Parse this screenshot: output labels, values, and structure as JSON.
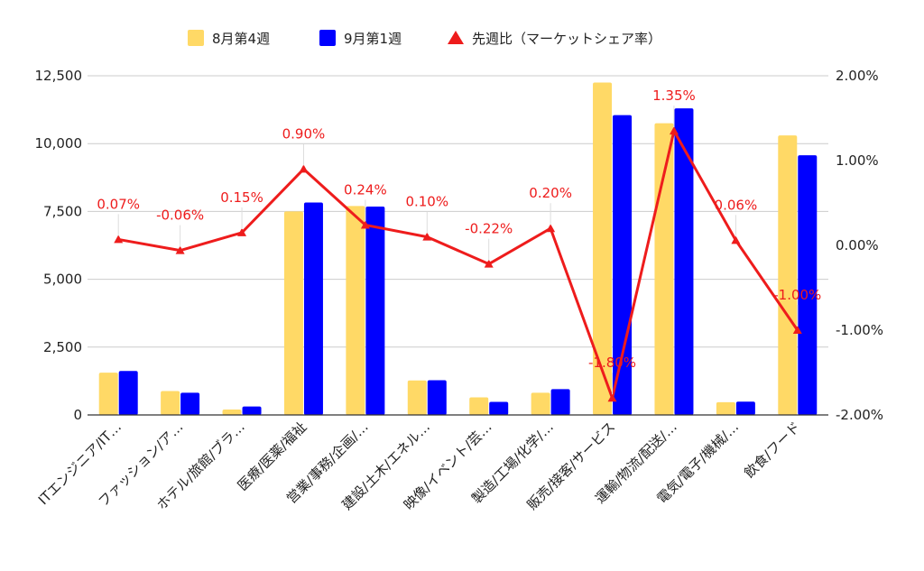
{
  "chart_data": {
    "type": "bar",
    "categories": [
      "ITエンジニア/IT…",
      "ファッション/ア…",
      "ホテル/旅館/ブラ…",
      "医療/医薬/福祉",
      "営業/事務/企画/…",
      "建設/土木/エネル…",
      "映像/イベント/芸…",
      "製造/工場/化学/…",
      "販売/接客/サービス",
      "運輸/物流/配送/…",
      "電気/電子/機械/…",
      "飲食/フード"
    ],
    "series": [
      {
        "name": "8月第4週",
        "axis": "left",
        "color": "#ffd966",
        "values": [
          1560,
          880,
          200,
          7500,
          7700,
          1270,
          650,
          820,
          12250,
          10750,
          470,
          10300
        ]
      },
      {
        "name": "9月第1週",
        "axis": "left",
        "color": "#0000ff",
        "values": [
          1620,
          820,
          310,
          7830,
          7680,
          1280,
          480,
          950,
          11050,
          11300,
          490,
          9570
        ]
      },
      {
        "name": "先週比（マーケットシェア率）",
        "axis": "right",
        "type": "line",
        "color": "#ee1c1c",
        "values": [
          0.07,
          -0.06,
          0.15,
          0.9,
          0.24,
          0.1,
          -0.22,
          0.2,
          -1.8,
          1.35,
          0.06,
          -1.0
        ]
      }
    ],
    "point_labels": [
      "0.07%",
      "-0.06%",
      "0.15%",
      "0.90%",
      "0.24%",
      "0.10%",
      "-0.22%",
      "0.20%",
      "-1.80%",
      "1.35%",
      "0.06%",
      "-1.00%"
    ],
    "y_left": {
      "min": 0,
      "max": 12500,
      "ticks": [
        0,
        2500,
        5000,
        7500,
        10000,
        12500
      ],
      "tick_labels": [
        "0",
        "2,500",
        "5,000",
        "7,500",
        "10,000",
        "12,500"
      ]
    },
    "y_right": {
      "min": -2,
      "max": 2,
      "ticks": [
        -2,
        -1,
        0,
        1,
        2
      ],
      "tick_labels": [
        "-2.00%",
        "-1.00%",
        "0.00%",
        "1.00%",
        "2.00%"
      ]
    },
    "grid": true,
    "legend": "top-center"
  }
}
